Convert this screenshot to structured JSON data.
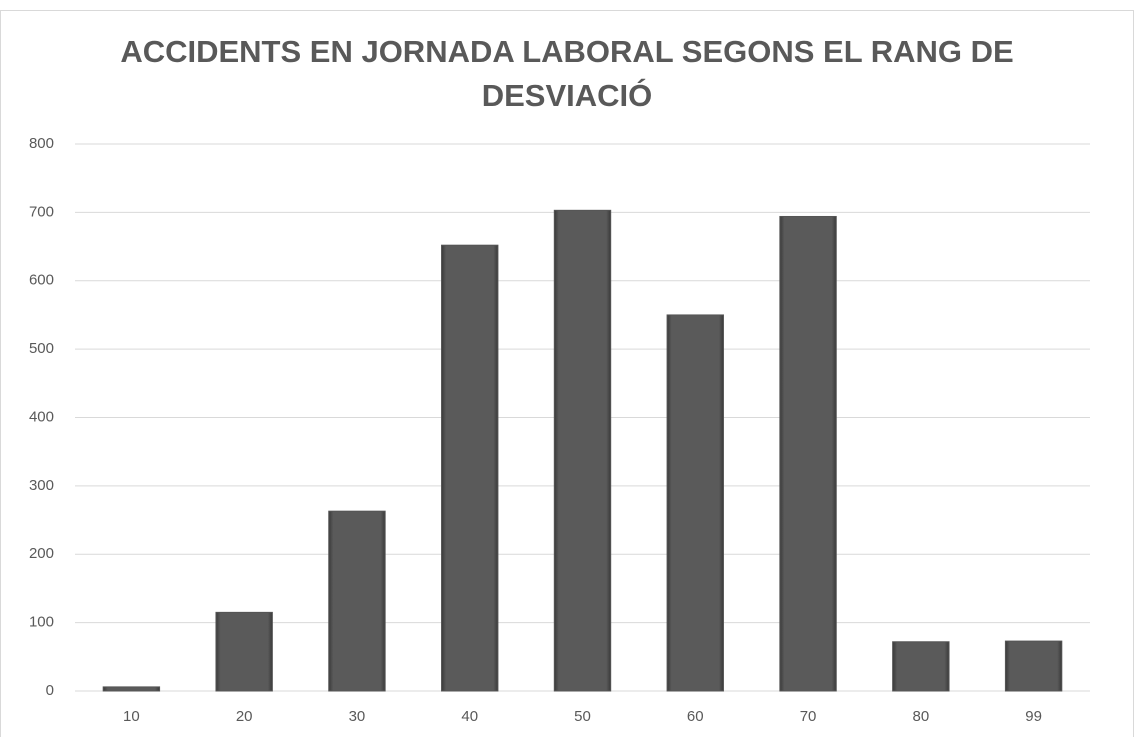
{
  "chart_data": {
    "type": "bar",
    "title": "ACCIDENTS EN JORNADA LABORAL SEGONS EL RANG DE DESVIACIÓ",
    "categories": [
      "10",
      "20",
      "30",
      "40",
      "50",
      "60",
      "70",
      "80",
      "99"
    ],
    "values": [
      6,
      115,
      263,
      652,
      703,
      550,
      694,
      72,
      73
    ],
    "color": "#555555",
    "ylim": [
      0,
      800
    ],
    "yticks": [
      0,
      100,
      200,
      300,
      400,
      500,
      600,
      700,
      800
    ],
    "grid": true
  }
}
